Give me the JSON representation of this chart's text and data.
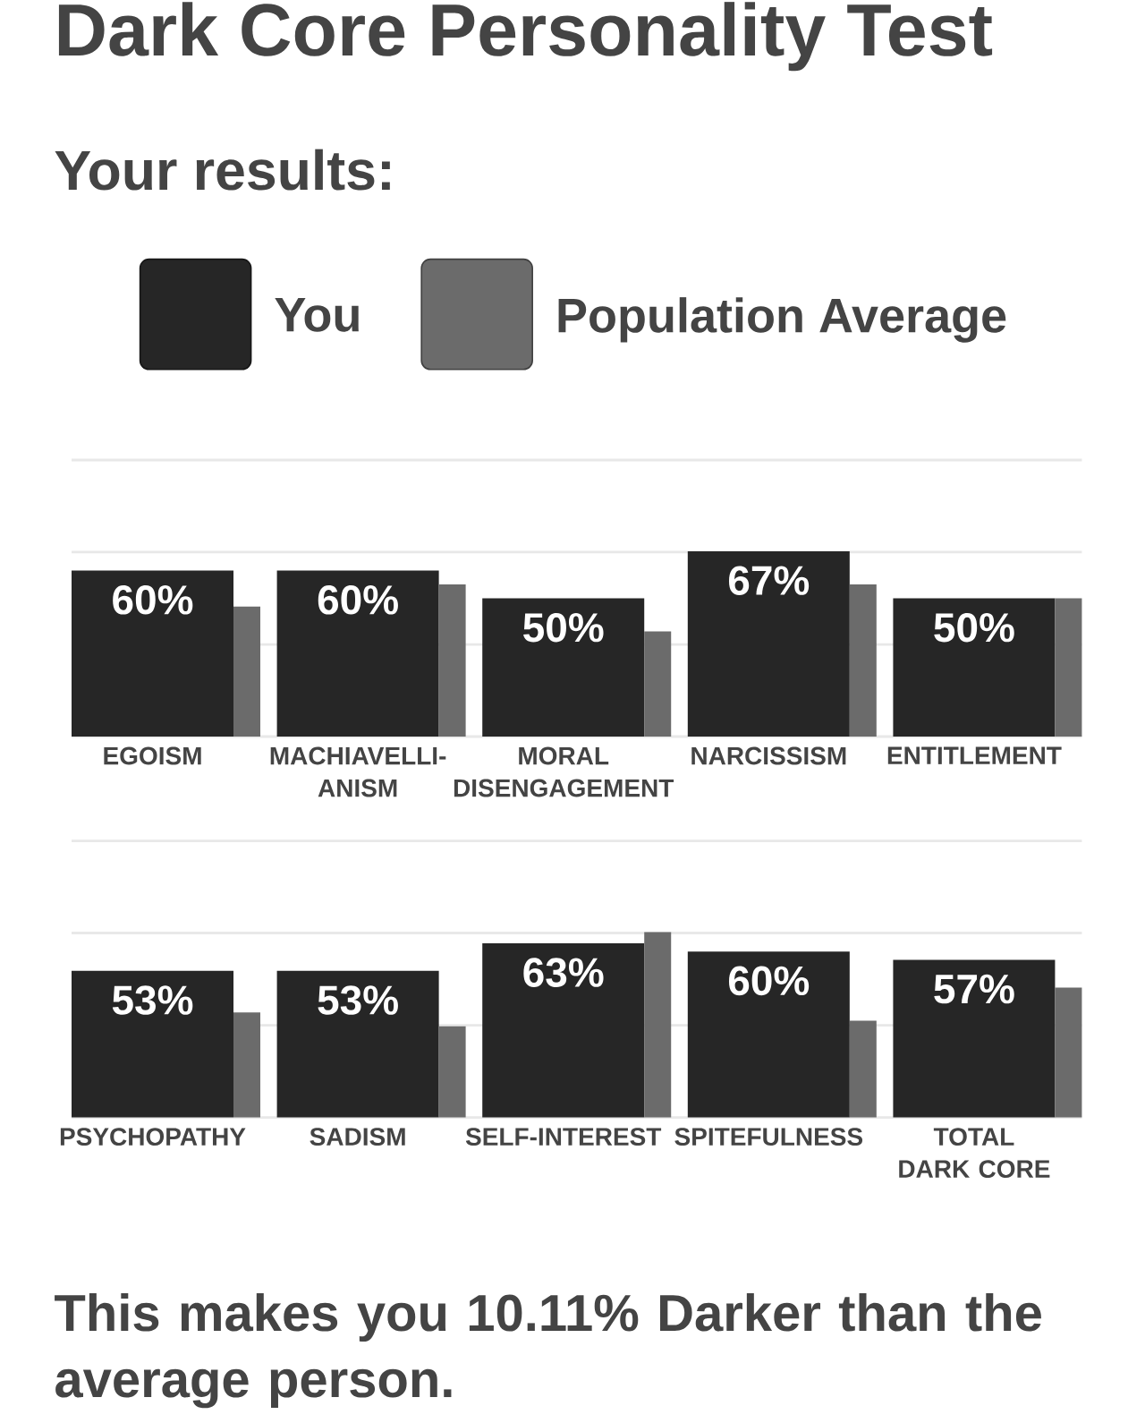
{
  "chart_data": [
    {
      "type": "bar",
      "title": "Dark Core Personality Test",
      "subtitle": "Your results:",
      "categories": [
        "EGOISM",
        "MACHIAVELLI-ANISM",
        "MORAL DISENGAGEMENT",
        "NARCISSISM",
        "ENTITLEMENT"
      ],
      "series": [
        {
          "name": "You",
          "color": "#262626",
          "values": [
            60,
            60,
            50,
            67,
            50
          ],
          "value_labels": [
            "60%",
            "60%",
            "50%",
            "67%",
            "50%"
          ]
        },
        {
          "name": "Population Average",
          "color": "#6b6b6b",
          "values": [
            47,
            55,
            38,
            55,
            50
          ]
        }
      ],
      "ylim": [
        0,
        100
      ],
      "yticks": [
        {
          "value": 0,
          "label": null
        },
        {
          "value": 33.3,
          "label": null
        },
        {
          "value": 66.7,
          "label": null
        },
        {
          "value": 100,
          "label": null
        }
      ],
      "grid": "y",
      "legend": "top",
      "tick_labels": "x"
    },
    {
      "type": "bar",
      "categories": [
        "PSYCHOPATHY",
        "SADISM",
        "SELF-INTEREST",
        "SPITEFULNESS",
        "TOTAL DARK CORE"
      ],
      "series": [
        {
          "color": "#262626",
          "values": [
            53,
            53,
            63,
            60,
            57
          ],
          "value_labels": [
            "53%",
            "53%",
            "63%",
            "60%",
            "57%"
          ]
        },
        {
          "color": "#6b6b6b",
          "values": [
            38,
            33,
            67,
            35,
            47
          ]
        }
      ],
      "ylim": [
        0,
        100
      ],
      "yticks": [
        {
          "value": 0,
          "label": null
        },
        {
          "value": 33.3,
          "label": null
        },
        {
          "value": 66.7,
          "label": null
        },
        {
          "value": 100,
          "label": null
        }
      ],
      "grid": "y",
      "tick_labels": "x",
      "annotations": [
        "This makes you 10.11% Darker than the average person."
      ]
    }
  ]
}
